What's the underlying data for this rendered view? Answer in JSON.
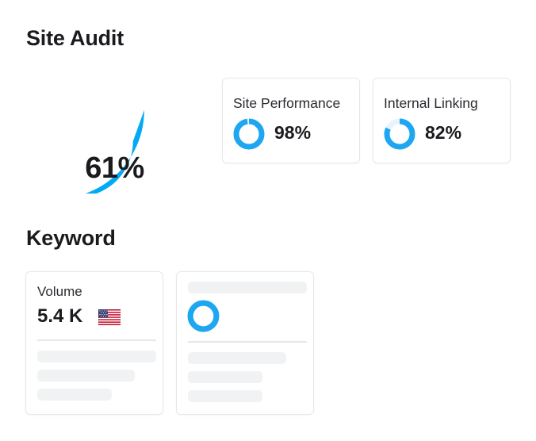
{
  "site_audit": {
    "title": "Site Audit",
    "gauge": {
      "value_label": "61%",
      "value": 61,
      "fill_color": "#03A9F4",
      "track_color": "#F2F4F7"
    },
    "metrics": [
      {
        "label": "Site Performance",
        "value_label": "98%",
        "value": 98
      },
      {
        "label": "Internal Linking",
        "value_label": "82%",
        "value": 82
      }
    ]
  },
  "keyword": {
    "title": "Keyword",
    "volume": {
      "label": "Volume",
      "value": "5.4 K",
      "flag_icon": "us-flag-icon"
    }
  },
  "colors": {
    "accent": "#1EA7F0",
    "skeleton": "#F1F2F4",
    "border": "#E6E7EA"
  }
}
